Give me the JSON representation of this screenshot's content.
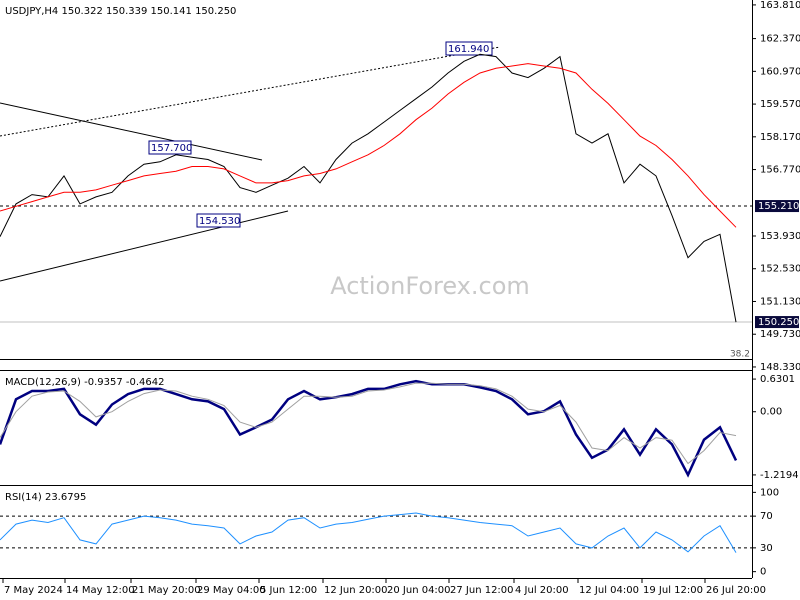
{
  "chart_data": [
    {
      "type": "line",
      "title": "USDJPY,H4  150.322 150.339 150.141 150.250",
      "x": [
        0,
        8,
        16,
        24,
        32,
        40,
        48,
        56,
        64,
        72,
        80,
        88,
        96,
        104,
        112,
        120,
        128,
        136,
        144,
        152,
        160,
        168,
        176,
        184,
        192,
        200,
        208,
        216,
        224,
        232,
        240,
        248,
        256,
        264,
        272,
        280,
        288,
        296,
        304,
        312,
        320,
        328,
        336,
        344,
        352,
        360,
        368
      ],
      "xlim": [
        0,
        376
      ],
      "xticks": [
        {
          "value": 1.5,
          "label": "7 May 2024"
        },
        {
          "value": 32.5,
          "label": "14 May 12:00"
        },
        {
          "value": 65.5,
          "label": "21 May 20:00"
        },
        {
          "value": 98,
          "label": "29 May 04:00"
        },
        {
          "value": 129.5,
          "label": "5 Jun 12:00"
        },
        {
          "value": 161.5,
          "label": "12 Jun 20:00"
        },
        {
          "value": 193,
          "label": "20 Jun 04:00"
        },
        {
          "value": 224.5,
          "label": "27 Jun 12:00"
        },
        {
          "value": 257,
          "label": "4 Jul 20:00"
        },
        {
          "value": 289,
          "label": "12 Jul 04:00"
        },
        {
          "value": 321,
          "label": "19 Jul 12:00"
        },
        {
          "value": 352.5,
          "label": "26 Jul 20:00"
        }
      ],
      "series": [
        {
          "color": "#000000",
          "values": [
            153.9,
            155.3,
            155.7,
            155.6,
            156.5,
            155.3,
            155.6,
            155.8,
            156.5,
            157.0,
            157.1,
            157.4,
            157.3,
            157.2,
            156.9,
            156.0,
            155.8,
            156.1,
            156.4,
            156.9,
            156.2,
            157.2,
            157.9,
            158.3,
            158.8,
            159.3,
            159.8,
            160.3,
            160.9,
            161.4,
            161.7,
            161.6,
            160.9,
            160.7,
            161.1,
            161.6,
            158.3,
            157.9,
            158.3,
            156.2,
            157.0,
            156.5,
            154.8,
            153.0,
            153.7,
            154.0,
            150.25
          ]
        },
        {
          "color": "#ff0000",
          "values": [
            155.0,
            155.2,
            155.4,
            155.6,
            155.8,
            155.8,
            155.9,
            156.1,
            156.3,
            156.5,
            156.6,
            156.7,
            156.9,
            156.9,
            156.8,
            156.5,
            156.2,
            156.2,
            156.3,
            156.5,
            156.6,
            156.8,
            157.1,
            157.4,
            157.8,
            158.3,
            158.9,
            159.4,
            160.0,
            160.5,
            160.9,
            161.1,
            161.2,
            161.3,
            161.2,
            161.1,
            160.9,
            160.2,
            159.6,
            158.9,
            158.2,
            157.8,
            157.2,
            156.5,
            155.7,
            155.0,
            154.3
          ]
        }
      ],
      "ylim": [
        148.2,
        164.02
      ],
      "yticks": [
        {
          "value": 163.81,
          "label": "163.810"
        },
        {
          "value": 162.37,
          "label": "162.370"
        },
        {
          "value": 160.97,
          "label": "160.970"
        },
        {
          "value": 159.57,
          "label": "159.570"
        },
        {
          "value": 158.17,
          "label": "158.170"
        },
        {
          "value": 156.77,
          "label": "156.770"
        },
        {
          "value": 153.93,
          "label": "153.930"
        },
        {
          "value": 152.53,
          "label": "152.530"
        },
        {
          "value": 151.13,
          "label": "151.130"
        },
        {
          "value": 149.73,
          "label": "149.730"
        },
        {
          "value": 148.33,
          "label": "148.330"
        }
      ],
      "levels": [
        {
          "value": 155.21,
          "label": "155.210",
          "style": "dashed"
        },
        {
          "value": 150.25,
          "label": "150.250",
          "style": "solid"
        }
      ],
      "annotations": [
        "157.700",
        "154.530",
        "161.940",
        "38.2",
        "ActionForex.com"
      ]
    },
    {
      "type": "line",
      "title": "MACD(12,26,9) -0.9357 -0.4642",
      "series": [
        {
          "color": "#000080",
          "values": [
            -0.63,
            0.24,
            0.4,
            0.4,
            0.44,
            -0.05,
            -0.25,
            0.14,
            0.34,
            0.44,
            0.44,
            0.34,
            0.24,
            0.2,
            0.05,
            -0.44,
            -0.3,
            -0.15,
            0.24,
            0.4,
            0.24,
            0.28,
            0.34,
            0.44,
            0.44,
            0.53,
            0.59,
            0.53,
            0.53,
            0.53,
            0.47,
            0.4,
            0.24,
            -0.05,
            0.01,
            0.2,
            -0.44,
            -0.89,
            -0.73,
            -0.34,
            -0.83,
            -0.34,
            -0.63,
            -1.22,
            -0.54,
            -0.3,
            -0.94
          ]
        },
        {
          "color": "#a0a0a0",
          "values": [
            -0.5,
            0.0,
            0.3,
            0.38,
            0.4,
            0.2,
            -0.1,
            0.0,
            0.2,
            0.35,
            0.42,
            0.4,
            0.3,
            0.24,
            0.12,
            -0.2,
            -0.3,
            -0.2,
            0.05,
            0.3,
            0.3,
            0.28,
            0.3,
            0.4,
            0.42,
            0.48,
            0.55,
            0.55,
            0.53,
            0.53,
            0.5,
            0.44,
            0.3,
            0.05,
            0.0,
            0.12,
            -0.2,
            -0.7,
            -0.75,
            -0.5,
            -0.7,
            -0.5,
            -0.55,
            -1.0,
            -0.75,
            -0.4,
            -0.46
          ]
        }
      ],
      "ylim": [
        -1.414,
        0.786
      ],
      "yticks": [
        0.6301,
        {
          "value": 0,
          "label": "0.00"
        },
        -1.2194
      ]
    },
    {
      "type": "line",
      "title": "RSI(14) 23.6795",
      "series": [
        {
          "color": "#1e90ff",
          "values": [
            40,
            60,
            65,
            62,
            68,
            40,
            35,
            60,
            65,
            70,
            68,
            65,
            60,
            58,
            55,
            35,
            45,
            50,
            65,
            68,
            55,
            60,
            62,
            66,
            70,
            72,
            74,
            70,
            68,
            65,
            62,
            60,
            58,
            45,
            50,
            55,
            35,
            30,
            45,
            55,
            30,
            50,
            40,
            25,
            45,
            58,
            24
          ]
        }
      ],
      "ylim": [
        -8,
        108
      ],
      "yticks": [
        100,
        70,
        30,
        0
      ],
      "levels": [
        70,
        30
      ]
    }
  ]
}
